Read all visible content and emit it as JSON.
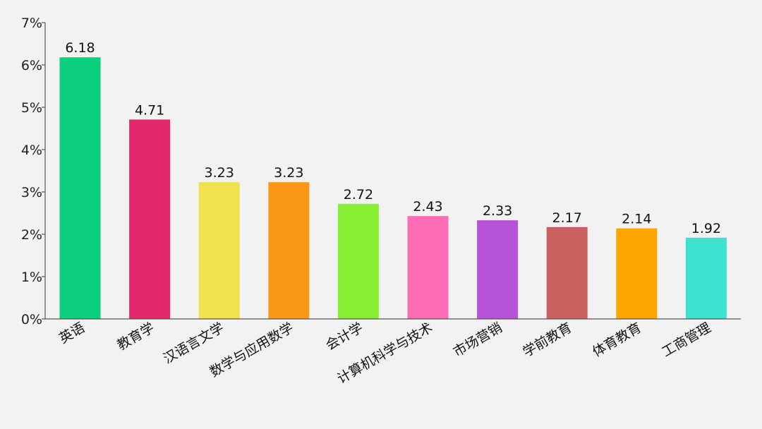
{
  "chart_data": {
    "type": "bar",
    "categories": [
      "英语",
      "教育学",
      "汉语言文学",
      "数学与应用数学",
      "会计学",
      "计算机科学与技术",
      "市场营销",
      "学前教育",
      "体育教育",
      "工商管理"
    ],
    "values": [
      6.18,
      4.71,
      3.23,
      3.23,
      2.72,
      2.43,
      2.33,
      2.17,
      2.14,
      1.92
    ],
    "value_labels": [
      "6.18",
      "4.71",
      "3.23",
      "3.23",
      "2.72",
      "2.43",
      "2.33",
      "2.17",
      "2.14",
      "1.92"
    ],
    "colors": [
      "#0ccf7e",
      "#e2296e",
      "#f2e14f",
      "#fa9717",
      "#88ef35",
      "#fd6db6",
      "#b653d6",
      "#c9605f",
      "#ffa500",
      "#3de3d0"
    ],
    "y_ticks": [
      "0%",
      "1%",
      "2%",
      "3%",
      "4%",
      "5%",
      "6%",
      "7%"
    ],
    "y_tick_values": [
      0,
      1,
      2,
      3,
      4,
      5,
      6,
      7
    ],
    "ylim": [
      0,
      7
    ],
    "title": "",
    "xlabel": "",
    "ylabel": "",
    "grid": false,
    "legend": "none"
  }
}
